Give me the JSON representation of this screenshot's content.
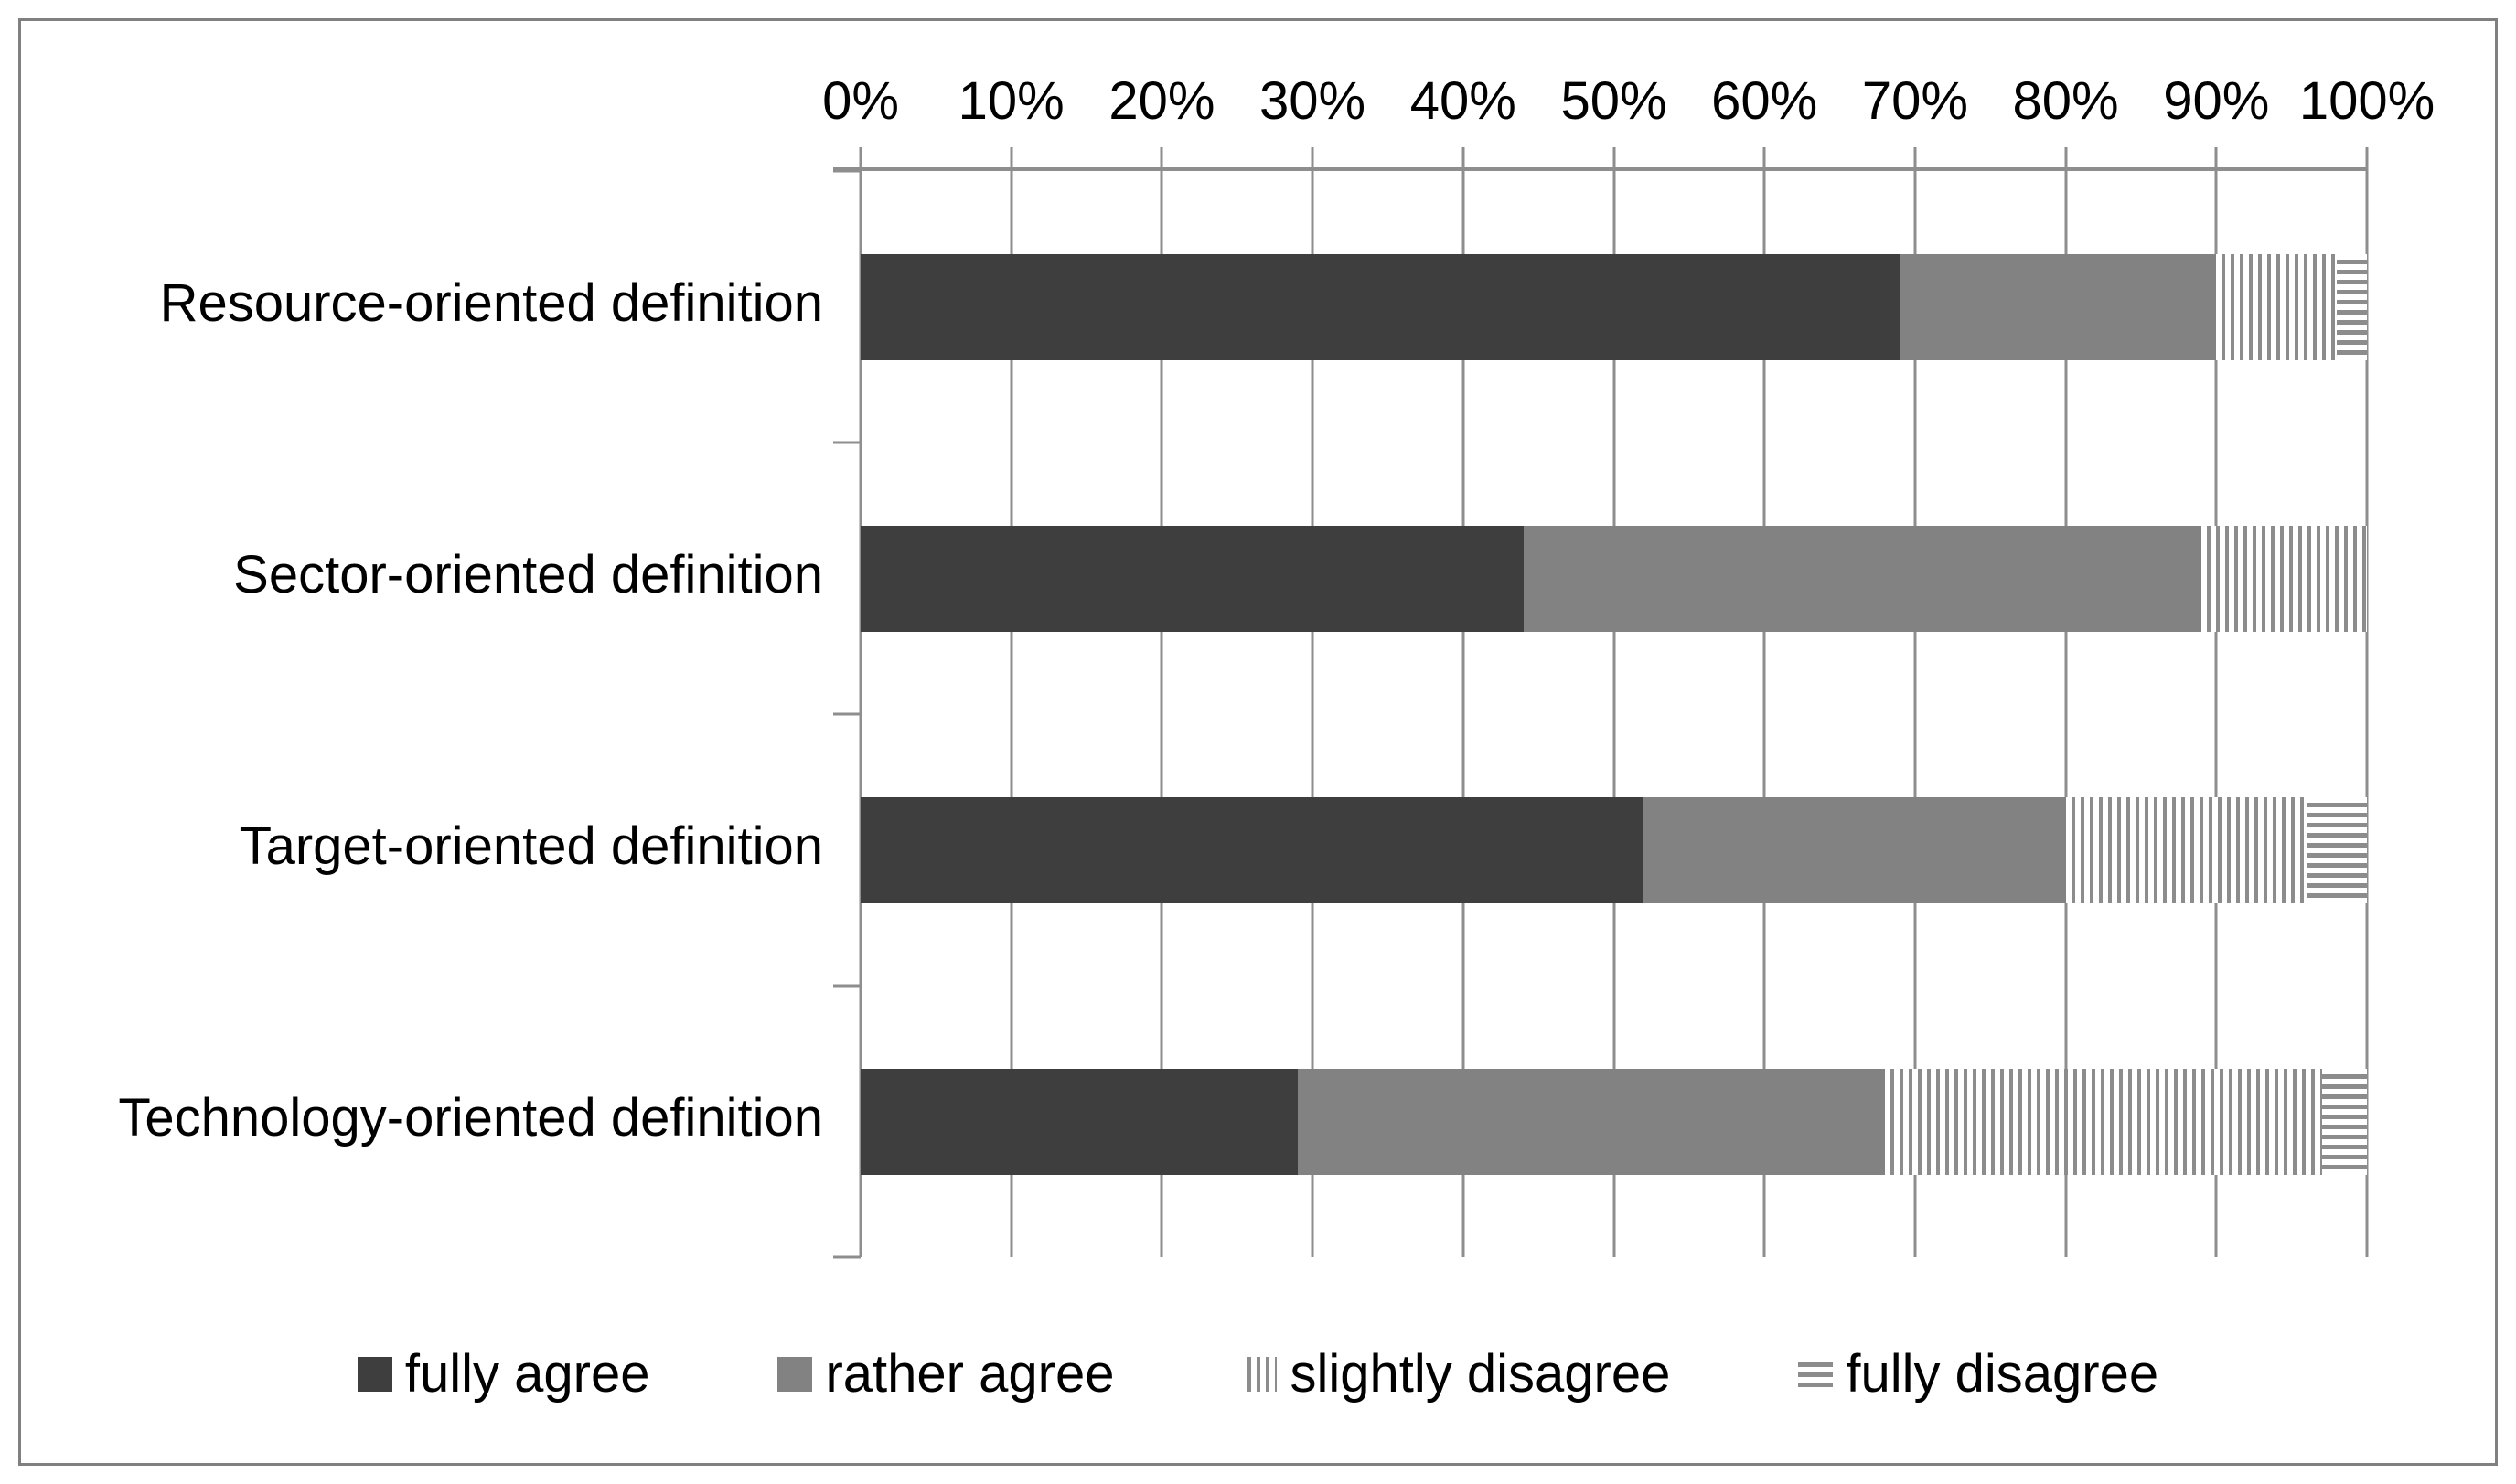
{
  "chart_data": {
    "type": "bar",
    "orientation": "horizontal",
    "stacked": true,
    "title": "",
    "xlabel": "",
    "ylabel": "",
    "x_axis": {
      "position": "top",
      "min": 0,
      "max": 100,
      "tick_step": 10,
      "ticks": [
        "0%",
        "10%",
        "20%",
        "30%",
        "40%",
        "50%",
        "60%",
        "70%",
        "80%",
        "90%",
        "100%"
      ]
    },
    "grid": "vertical-gridlines-on",
    "categories": [
      "Resource-oriented definition",
      "Sector-oriented definition",
      "Target-oriented definition",
      "Technology-oriented definition"
    ],
    "series": [
      {
        "name": "fully agree",
        "style": "solid-dark",
        "values": [
          69,
          44,
          52,
          29
        ]
      },
      {
        "name": "rather agree",
        "style": "solid-gray",
        "values": [
          21,
          45,
          28,
          39
        ]
      },
      {
        "name": "slightly disagree",
        "style": "vertical-stripes",
        "values": [
          8,
          11,
          16,
          29
        ]
      },
      {
        "name": "fully disagree",
        "style": "horizontal-stripes",
        "values": [
          2,
          0,
          4,
          3
        ]
      }
    ],
    "legend": {
      "position": "bottom",
      "entries": [
        "fully agree",
        "rather agree",
        "slightly disagree",
        "fully disagree"
      ]
    },
    "colors": {
      "fully_agree": "#3e3e3e",
      "rather_agree": "#828282",
      "stripe_line": "#8c8c8c",
      "gridline": "#8e8e8e",
      "frame_border": "#808080",
      "text": "#000000"
    }
  }
}
